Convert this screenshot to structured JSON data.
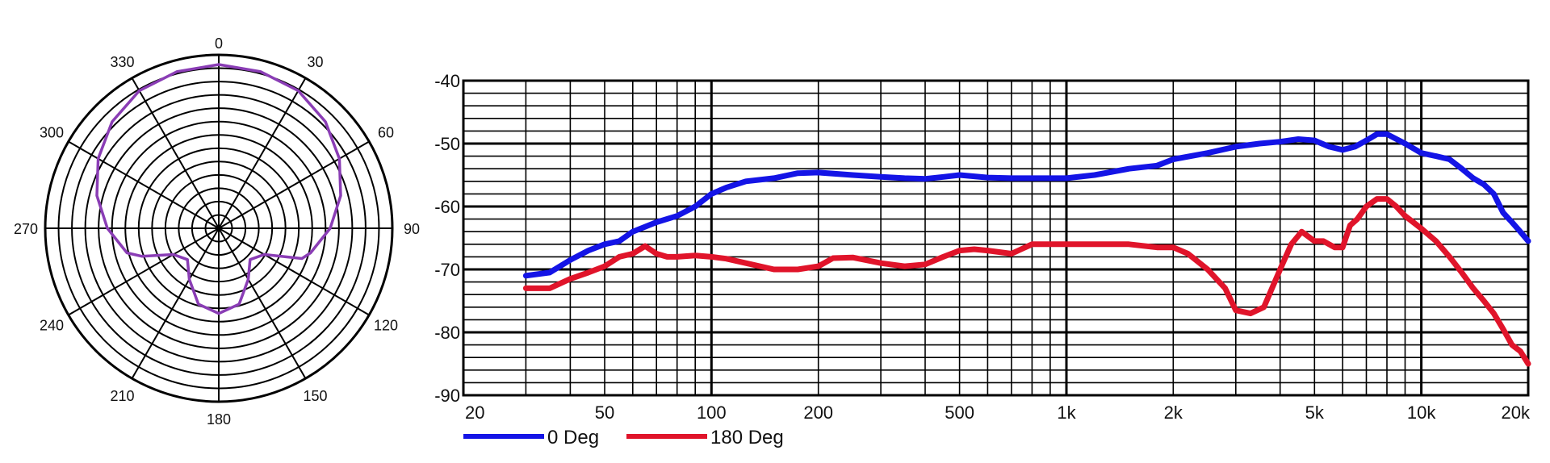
{
  "colors": {
    "polar": "#8a3db5",
    "series_0": "#1414e6",
    "series_180": "#e0142a",
    "grid": "#000000"
  },
  "chart_data": [
    {
      "type": "polar",
      "angle_labels": [
        "0",
        "30",
        "60",
        "90",
        "120",
        "150",
        "180",
        "210",
        "240",
        "270",
        "300",
        "330"
      ],
      "rings": 13,
      "pattern": "supercardioid",
      "series": [
        {
          "angles_deg": [
            0,
            15,
            30,
            45,
            60,
            75,
            90,
            105,
            110,
            120,
            135,
            150,
            165,
            180,
            195,
            210,
            225,
            240,
            250,
            255,
            270,
            285,
            300,
            315,
            330,
            345,
            360
          ],
          "radius": [
            1.0,
            0.99,
            0.97,
            0.92,
            0.85,
            0.77,
            0.68,
            0.58,
            0.54,
            0.32,
            0.27,
            0.36,
            0.48,
            0.52,
            0.48,
            0.36,
            0.27,
            0.32,
            0.5,
            0.58,
            0.68,
            0.77,
            0.85,
            0.92,
            0.97,
            0.99,
            1.0
          ]
        }
      ]
    },
    {
      "type": "line",
      "x_scale": "log",
      "xlim": [
        20,
        20000
      ],
      "ylim": [
        -90,
        -40
      ],
      "x_tick_labels": [
        "20",
        "50",
        "100",
        "200",
        "500",
        "1k",
        "2k",
        "5k",
        "10k",
        "20k"
      ],
      "x_tick_values": [
        20,
        50,
        100,
        200,
        500,
        1000,
        2000,
        5000,
        10000,
        20000
      ],
      "y_tick_labels": [
        "-40",
        "-50",
        "-60",
        "-70",
        "-80",
        "-90"
      ],
      "y_tick_values": [
        -40,
        -50,
        -60,
        -70,
        -80,
        -90
      ],
      "grid": true,
      "legend_position": "bottom-left",
      "series": [
        {
          "name": "0 Deg",
          "x": [
            30,
            35,
            40,
            45,
            50,
            55,
            60,
            70,
            80,
            90,
            100,
            110,
            125,
            150,
            175,
            200,
            250,
            300,
            350,
            400,
            450,
            500,
            550,
            600,
            700,
            800,
            900,
            1000,
            1200,
            1500,
            1800,
            2000,
            2500,
            3000,
            3500,
            4000,
            4500,
            5000,
            5500,
            6000,
            6500,
            7000,
            7500,
            8000,
            9000,
            10000,
            11000,
            12000,
            13000,
            14000,
            15000,
            16000,
            17000,
            18000,
            19000,
            20000
          ],
          "y": [
            -71,
            -70.5,
            -68.5,
            -67,
            -66,
            -65.5,
            -64,
            -62.5,
            -61.5,
            -60,
            -58,
            -57,
            -56,
            -55.5,
            -54.7,
            -54.6,
            -55,
            -55.3,
            -55.5,
            -55.6,
            -55.3,
            -55,
            -55.2,
            -55.4,
            -55.5,
            -55.5,
            -55.5,
            -55.5,
            -55,
            -54,
            -53.5,
            -52.5,
            -51.5,
            -50.5,
            -50,
            -49.7,
            -49.3,
            -49.5,
            -50.5,
            -51,
            -50.5,
            -49.5,
            -48.5,
            -48.5,
            -50,
            -51.5,
            -52,
            -52.5,
            -54,
            -55.5,
            -56.5,
            -58,
            -61,
            -62.5,
            -64,
            -65.5
          ]
        },
        {
          "name": "180 Deg",
          "x": [
            30,
            35,
            40,
            45,
            50,
            55,
            60,
            65,
            70,
            75,
            80,
            90,
            100,
            110,
            125,
            150,
            175,
            200,
            220,
            250,
            300,
            350,
            400,
            450,
            500,
            550,
            600,
            700,
            800,
            900,
            1000,
            1200,
            1500,
            1800,
            2000,
            2200,
            2500,
            2800,
            3000,
            3300,
            3600,
            4000,
            4300,
            4600,
            5000,
            5300,
            5700,
            6000,
            6300,
            6600,
            7000,
            7500,
            8000,
            8500,
            9000,
            10000,
            11000,
            12000,
            13000,
            14000,
            15000,
            16000,
            17000,
            18000,
            19000,
            20000
          ],
          "y": [
            -73,
            -73,
            -71.5,
            -70.5,
            -69.5,
            -68,
            -67.5,
            -66.3,
            -67.5,
            -68,
            -68,
            -67.8,
            -68,
            -68.3,
            -69,
            -70,
            -70,
            -69.5,
            -68.2,
            -68.1,
            -69,
            -69.5,
            -69.2,
            -68,
            -67,
            -66.8,
            -67,
            -67.5,
            -66,
            -66,
            -66,
            -66,
            -66,
            -66.5,
            -66.5,
            -67.5,
            -70,
            -73,
            -76.5,
            -77,
            -76,
            -70,
            -66,
            -64,
            -65.5,
            -65.5,
            -66.5,
            -66.5,
            -63,
            -62,
            -60,
            -58.8,
            -58.8,
            -60,
            -61.5,
            -63.5,
            -65.5,
            -68,
            -70.5,
            -73,
            -75,
            -77,
            -79.5,
            -82,
            -83,
            -85
          ]
        }
      ]
    }
  ]
}
